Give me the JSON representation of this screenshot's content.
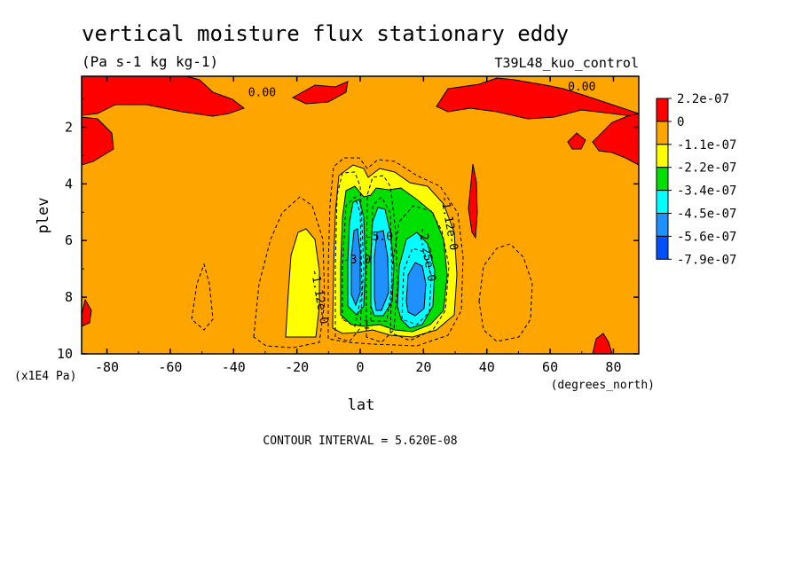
{
  "chart_data": {
    "type": "heatmap",
    "title": "vertical moisture flux stationary eddy",
    "units": "(Pa s-1 kg kg-1)",
    "run_label": "T39L48_kuo_control",
    "xlabel": "lat",
    "x_units": "(degrees_north)",
    "ylabel": "plev",
    "y_units": "(x1E4 Pa)",
    "xlim": [
      -88,
      88
    ],
    "ylim": [
      0.2,
      10
    ],
    "x_ticks": [
      -80,
      -60,
      -40,
      -20,
      0,
      20,
      40,
      60,
      80
    ],
    "x_tick_labels": [
      "-80",
      "-60",
      "-40",
      "-20",
      "0",
      "20",
      "40",
      "60",
      "80"
    ],
    "y_ticks": [
      2,
      4,
      6,
      8,
      10
    ],
    "y_tick_labels": [
      "2",
      "4",
      "6",
      "8",
      "10"
    ],
    "contour_interval": "CONTOUR INTERVAL = 5.620E-08",
    "colorbar": {
      "labels": [
        "2.2e-07",
        "0",
        "-1.1e-07",
        "-2.2e-07",
        "-3.4e-07",
        "-4.5e-07",
        "-5.6e-07",
        "-7.9e-07"
      ],
      "colors": [
        "#ff0000",
        "#ffa500",
        "#ffff00",
        "#00e000",
        "#00ffff",
        "#1e90ff",
        "#0050ff"
      ]
    },
    "contour_labels": [
      {
        "text": "0.00",
        "x": -31,
        "y": 0.9
      },
      {
        "text": "0.00",
        "x": 70,
        "y": 0.7
      },
      {
        "text": "-1.12e-0",
        "x": -14,
        "y": 8.0
      },
      {
        "text": "-1.12e-0",
        "x": 27,
        "y": 5.4
      },
      {
        "text": "-2.25e-0",
        "x": 20,
        "y": 6.5
      },
      {
        "text": "-3.0",
        "x": -1,
        "y": 6.8
      },
      {
        "text": "-5.0",
        "x": 6,
        "y": 6.0
      },
      {
        "text": "1",
        "x": 2,
        "y": 9.1
      }
    ]
  }
}
